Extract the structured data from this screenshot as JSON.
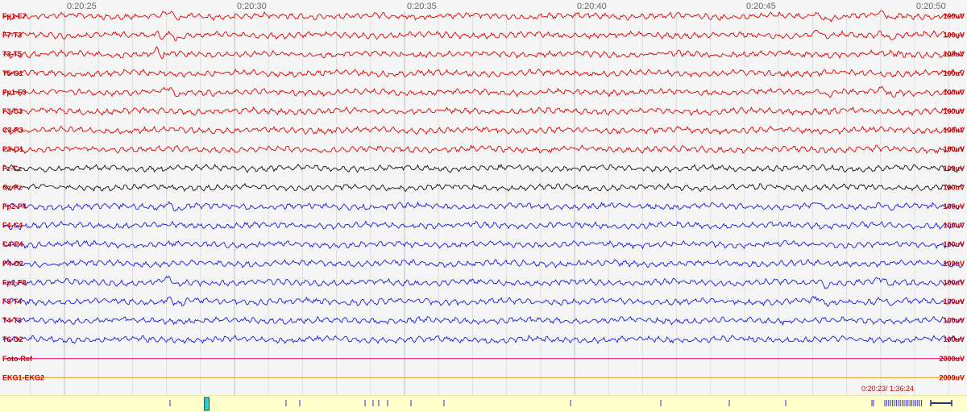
{
  "time_axis": {
    "labels": [
      "0:20:25",
      "0:20:30",
      "0:20:35",
      "0:20:40",
      "0:20:45",
      "0:20:50"
    ]
  },
  "channels": [
    {
      "name": "Fp1-F7",
      "scale": "100uV",
      "color": "#e00000"
    },
    {
      "name": "F7-T3",
      "scale": "100uV",
      "color": "#e00000"
    },
    {
      "name": "T3-T5",
      "scale": "100uV",
      "color": "#e00000"
    },
    {
      "name": "T5-O1",
      "scale": "100uV",
      "color": "#e00000"
    },
    {
      "name": "Fp1-F3",
      "scale": "100uV",
      "color": "#e00000"
    },
    {
      "name": "F3-C3",
      "scale": "100uV",
      "color": "#e00000"
    },
    {
      "name": "C3-P3",
      "scale": "100uV",
      "color": "#e00000"
    },
    {
      "name": "P3-O1",
      "scale": "100uV",
      "color": "#e00000"
    },
    {
      "name": "Fz-Cz",
      "scale": "100uV",
      "color": "#111111"
    },
    {
      "name": "Cz-Pz",
      "scale": "100uV",
      "color": "#111111"
    },
    {
      "name": "Fp2-F4",
      "scale": "100uV",
      "color": "#1a1ae0"
    },
    {
      "name": "F4-C4",
      "scale": "100uV",
      "color": "#1a1ae0"
    },
    {
      "name": "C4-P4",
      "scale": "100uV",
      "color": "#1a1ae0"
    },
    {
      "name": "P4-O2",
      "scale": "100uV",
      "color": "#1a1ae0"
    },
    {
      "name": "Fp2-F8",
      "scale": "100uV",
      "color": "#1a1ae0"
    },
    {
      "name": "F8-T4",
      "scale": "100uV",
      "color": "#1a1ae0"
    },
    {
      "name": "T4-T6",
      "scale": "100uV",
      "color": "#1a1ae0"
    },
    {
      "name": "T6-O2",
      "scale": "100uV",
      "color": "#1a1ae0"
    },
    {
      "name": "Foto-Ref",
      "scale": "2000uV",
      "color": "#e0007a"
    },
    {
      "name": "EKG1-EKG2",
      "scale": "2000uV",
      "color": "#e0a020"
    }
  ],
  "position_readout": "0:20:23/ 1:36:24",
  "colors": {
    "label_red": "#cc0000",
    "grid": "#cfcfcf",
    "nav_background": "#ffffcc",
    "nav_marker": "#3333cc",
    "nav_window": "#33cccc"
  },
  "nav": {
    "window_position_fraction": 0.2138
  }
}
